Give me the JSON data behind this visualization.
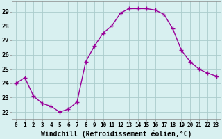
{
  "x": [
    0,
    1,
    2,
    3,
    4,
    5,
    6,
    7,
    8,
    9,
    10,
    11,
    12,
    13,
    14,
    15,
    16,
    17,
    18,
    19,
    20,
    21,
    22,
    23
  ],
  "y": [
    24.0,
    24.4,
    23.1,
    22.6,
    22.4,
    22.0,
    22.2,
    22.7,
    25.5,
    26.6,
    27.5,
    28.0,
    28.9,
    29.2,
    29.2,
    29.2,
    29.1,
    28.8,
    27.8,
    26.3,
    25.5,
    25.0,
    24.7,
    24.5
  ],
  "line_color": "#990099",
  "marker": "+",
  "markersize": 4,
  "linewidth": 1.0,
  "bg_color": "#d8f0f0",
  "grid_color": "#aacccc",
  "xlabel": "Windchill (Refroidissement éolien,°C)",
  "xlabel_fontsize": 7,
  "ylabel_ticks": [
    22,
    23,
    24,
    25,
    26,
    27,
    28,
    29
  ],
  "ylim": [
    21.5,
    29.7
  ],
  "xlim": [
    -0.5,
    23.5
  ],
  "xtick_fontsize": 5.5,
  "ytick_fontsize": 6.5
}
